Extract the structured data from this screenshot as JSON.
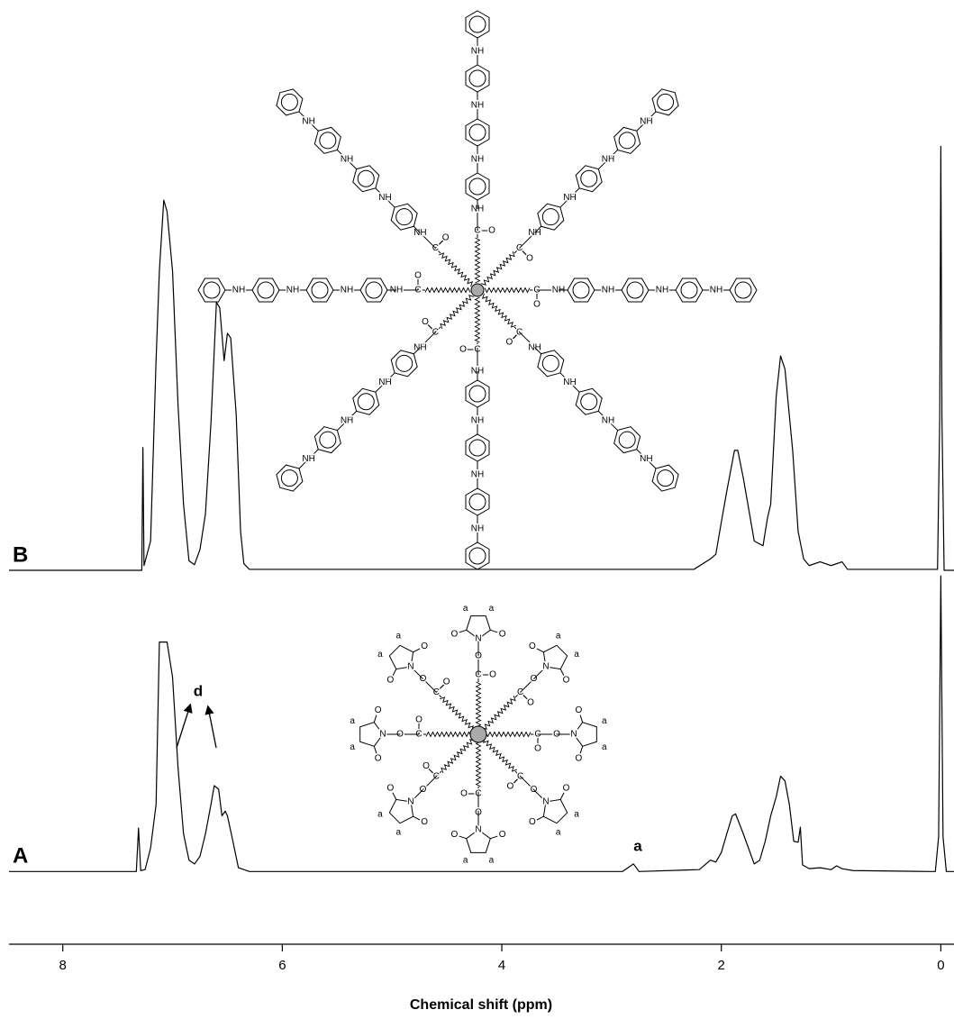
{
  "chart_data": {
    "type": "line",
    "xlabel": "Chemical shift (ppm)",
    "xlim": [
      8.49,
      -0.12
    ],
    "xticks": [
      8,
      6,
      4,
      2,
      0
    ],
    "ylim": [
      0,
      100
    ],
    "series": [
      {
        "name": "B",
        "color": "#000000",
        "x": [
          8.49,
          7.35,
          7.28,
          7.27,
          7.26,
          7.2,
          7.15,
          7.12,
          7.08,
          7.05,
          7.0,
          6.95,
          6.9,
          6.85,
          6.8,
          6.75,
          6.7,
          6.65,
          6.6,
          6.57,
          6.53,
          6.5,
          6.47,
          6.42,
          6.38,
          6.35,
          6.3,
          2.25,
          2.1,
          2.05,
          2.0,
          1.95,
          1.88,
          1.85,
          1.8,
          1.7,
          1.62,
          1.58,
          1.55,
          1.5,
          1.46,
          1.42,
          1.35,
          1.3,
          1.25,
          1.2,
          1.1,
          1.0,
          0.9,
          0.85,
          0.1,
          0.03,
          0.01,
          0.0,
          -0.01,
          -0.03,
          -0.12
        ],
        "values": [
          39.6,
          39.6,
          39.6,
          52.6,
          40.1,
          42.7,
          61.9,
          71.3,
          78.8,
          77.6,
          71.3,
          57.1,
          46.6,
          40.6,
          40.2,
          41.8,
          45.6,
          55.2,
          68.0,
          67.4,
          61.8,
          64.7,
          64.2,
          56.1,
          43.7,
          40.3,
          39.7,
          39.7,
          40.8,
          41.3,
          44.7,
          48.0,
          52.3,
          52.3,
          49.4,
          42.7,
          42.2,
          45.1,
          46.6,
          58.0,
          62.3,
          60.9,
          52.3,
          43.7,
          40.8,
          40.1,
          40.5,
          40.1,
          40.5,
          39.7,
          39.7,
          39.7,
          55.9,
          84.5,
          55.9,
          39.6,
          39.6
        ]
      },
      {
        "name": "A",
        "color": "#000000",
        "x": [
          8.49,
          7.4,
          7.33,
          7.31,
          7.29,
          7.25,
          7.2,
          7.15,
          7.12,
          7.08,
          7.05,
          7.0,
          6.95,
          6.9,
          6.85,
          6.8,
          6.75,
          6.7,
          6.65,
          6.62,
          6.58,
          6.55,
          6.52,
          6.5,
          6.45,
          6.4,
          6.35,
          6.3,
          2.9,
          2.8,
          2.75,
          2.2,
          2.1,
          2.05,
          2.0,
          1.95,
          1.9,
          1.87,
          1.8,
          1.7,
          1.65,
          1.6,
          1.55,
          1.5,
          1.46,
          1.42,
          1.38,
          1.34,
          1.3,
          1.28,
          1.26,
          1.2,
          1.1,
          1.0,
          0.95,
          0.9,
          0.8,
          0.1,
          0.05,
          0.02,
          0.0,
          -0.02,
          -0.05,
          -0.12
        ],
        "values": [
          7.7,
          7.7,
          7.7,
          12.3,
          7.8,
          7.9,
          10.2,
          14.8,
          32.0,
          32.0,
          32.0,
          28.3,
          18.7,
          11.7,
          8.9,
          8.5,
          9.3,
          11.7,
          14.8,
          16.8,
          16.4,
          13.6,
          14.1,
          13.6,
          10.9,
          8.1,
          7.9,
          7.7,
          7.7,
          8.5,
          7.7,
          7.9,
          8.9,
          8.7,
          9.7,
          11.7,
          13.6,
          13.8,
          11.7,
          8.5,
          8.9,
          10.9,
          13.6,
          15.6,
          17.8,
          17.3,
          14.8,
          10.9,
          10.8,
          12.4,
          8.4,
          8.0,
          8.1,
          7.9,
          8.3,
          8.0,
          7.8,
          7.7,
          7.7,
          11.4,
          39,
          11.4,
          7.7,
          7.7
        ]
      }
    ],
    "annotations": [
      {
        "text": "d"
      },
      {
        "text": "a"
      }
    ]
  },
  "structure_labels": {
    "nh": "NH",
    "c": "C",
    "o": "O",
    "n": "N",
    "a": "a"
  }
}
